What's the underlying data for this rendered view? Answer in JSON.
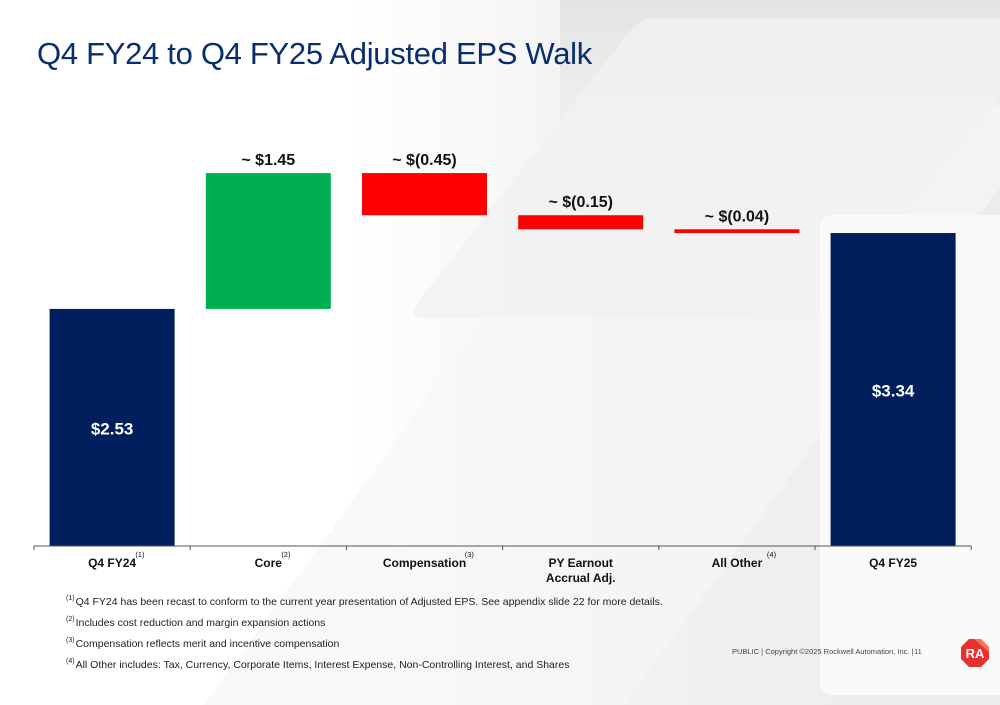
{
  "page": {
    "title": "Q4 FY24 to Q4 FY25 Adjusted EPS Walk",
    "footer": "PUBLIC | Copyright ©2025 Rockwell Automation, Inc. |",
    "page_number": "11",
    "logo_text": "RA"
  },
  "footnotes": [
    {
      "marker": "(1)",
      "text": "Q4 FY24 has been recast to conform to the current year presentation of Adjusted EPS. See appendix slide 22 for more details."
    },
    {
      "marker": "(2)",
      "text": "Includes cost reduction and margin expansion actions"
    },
    {
      "marker": "(3)",
      "text": "Compensation reflects merit and incentive compensation"
    },
    {
      "marker": "(4)",
      "text": "All Other includes: Tax, Currency, Corporate Items, Interest Expense, Non-Controlling Interest, and Shares"
    }
  ],
  "colors": {
    "total": "#001f5c",
    "increase": "#00b050",
    "decrease": "#ff0000",
    "title": "#0a2d6e"
  },
  "chart_data": {
    "type": "bar",
    "subtype": "waterfall",
    "title": "Q4 FY24 to Q4 FY25 Adjusted EPS Walk",
    "xlabel": "",
    "ylabel": "",
    "ylim": [
      0,
      3.5
    ],
    "grid": false,
    "categories": [
      {
        "label": "Q4 FY24",
        "label2": "",
        "sup": "(1)"
      },
      {
        "label": "Core",
        "label2": "",
        "sup": "(2)"
      },
      {
        "label": "Compensation",
        "label2": "",
        "sup": "(3)"
      },
      {
        "label": "PY Earnout",
        "label2": "Accrual Adj.",
        "sup": ""
      },
      {
        "label": "All Other",
        "label2": "",
        "sup": "(4)"
      },
      {
        "label": "Q4 FY25",
        "label2": "",
        "sup": ""
      }
    ],
    "bars": [
      {
        "kind": "total",
        "value": 2.53,
        "data_label": "$2.53"
      },
      {
        "kind": "increase",
        "value": 1.45,
        "data_label": "~ $1.45"
      },
      {
        "kind": "decrease",
        "value": -0.45,
        "data_label": "~ $(0.45)"
      },
      {
        "kind": "decrease",
        "value": -0.15,
        "data_label": "~ $(0.15)"
      },
      {
        "kind": "decrease",
        "value": -0.04,
        "data_label": "~ $(0.04)"
      },
      {
        "kind": "total",
        "value": 3.34,
        "data_label": "$3.34"
      }
    ]
  }
}
